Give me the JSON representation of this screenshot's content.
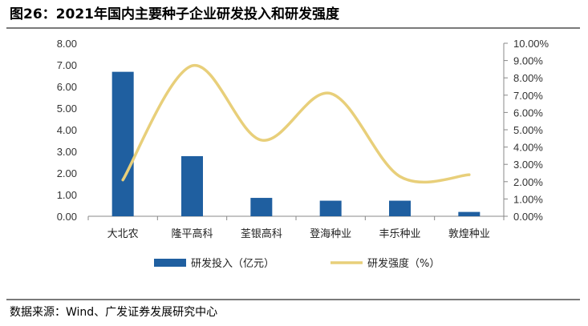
{
  "header": {
    "title": "图26：2021年国内主要种子企业研发投入和研发强度"
  },
  "footer": {
    "source": "数据来源：Wind、广发证券发展研究中心"
  },
  "colors": {
    "bar": "#1f5fa0",
    "line": "#e8cf7a"
  },
  "chart_data": {
    "type": "bar",
    "categories": [
      "大北农",
      "隆平高科",
      "荃银高科",
      "登海种业",
      "丰乐种业",
      "敦煌种业"
    ],
    "series": [
      {
        "name": "研发投入（亿元）",
        "type": "bar",
        "axis": "left",
        "values": [
          6.68,
          2.78,
          0.85,
          0.72,
          0.72,
          0.2
        ]
      },
      {
        "name": "研发强度（%）",
        "type": "line",
        "axis": "right",
        "smooth": true,
        "values": [
          2.1,
          8.7,
          4.4,
          7.1,
          2.3,
          2.4
        ]
      }
    ],
    "y_left": {
      "ylim": [
        0,
        8
      ],
      "ticks": [
        "0.00",
        "1.00",
        "2.00",
        "3.00",
        "4.00",
        "5.00",
        "6.00",
        "7.00",
        "8.00"
      ]
    },
    "y_right": {
      "ylim": [
        0,
        10
      ],
      "ticks": [
        "0.00%",
        "1.00%",
        "2.00%",
        "3.00%",
        "4.00%",
        "5.00%",
        "6.00%",
        "7.00%",
        "8.00%",
        "9.00%",
        "10.00%"
      ]
    },
    "legend": "bottom"
  }
}
